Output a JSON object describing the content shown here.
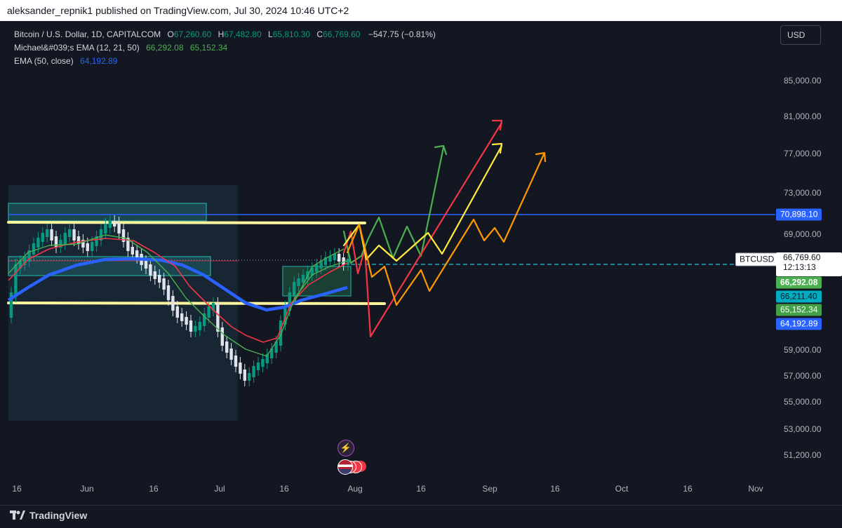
{
  "header": {
    "publisher_line": "aleksander_repnik1 published on TradingView.com, Jul 30, 2024 10:46 UTC+2"
  },
  "legend": {
    "title": "Bitcoin / U.S. Dollar, 1D, CAPITALCOM",
    "o_label": "O",
    "o": "67,260.60",
    "h_label": "H",
    "h": "67,482.80",
    "l_label": "L",
    "l": "65,810.30",
    "c_label": "C",
    "c": "66,769.60",
    "change": "−547.75 (−0.81%)",
    "ema_ribbon_label": "Michael&#039;s EMA (12, 21, 50)",
    "ema_ribbon_v1": "66,292.08",
    "ema_ribbon_v2": "65,152.34",
    "ema50_label": "EMA (50, close)",
    "ema50_value": "64,192.89"
  },
  "currency_button": "USD",
  "price_axis": {
    "ticks": [
      "85,000.00",
      "81,000.00",
      "77,000.00",
      "73,000.00",
      "69,000.00",
      "59,000.00",
      "57,000.00",
      "55,000.00",
      "53,000.00",
      "51,200.00"
    ],
    "tags": {
      "level": "70,898.10",
      "current_price": "66,769.60",
      "countdown": "12:13:13",
      "ema12": "66,292.08",
      "ema_alt": "66,211.40",
      "ema21": "65,152.34",
      "ema50": "64,192.89"
    },
    "symbol_tag": "BTCUSD"
  },
  "time_axis": {
    "ticks": [
      "16",
      "Jun",
      "16",
      "Jul",
      "16",
      "Aug",
      "16",
      "Sep",
      "16",
      "Oct",
      "16",
      "Nov"
    ]
  },
  "brand": {
    "name": "TradingView"
  },
  "colors": {
    "background": "#131722",
    "up": "#089981",
    "level_line": "#2962ff",
    "ema12": "#4caf50",
    "ema21": "#f23645",
    "ema50": "#2962ff",
    "support": "#fff59d",
    "arrow_green": "#4caf50",
    "arrow_red": "#f23645",
    "arrow_yellow": "#ffeb3b",
    "arrow_orange": "#ff9800"
  },
  "chart_data": {
    "type": "candlestick",
    "symbol": "BTCUSD",
    "interval": "1D",
    "y_range": [
      50000,
      88000
    ],
    "x_labels": [
      "16",
      "Jun",
      "16",
      "Jul",
      "16",
      "Aug",
      "16",
      "Sep",
      "16",
      "Oct",
      "16",
      "Nov"
    ],
    "last_ohlc": {
      "open": 67260.6,
      "high": 67482.8,
      "low": 65810.3,
      "close": 66769.6
    },
    "horizontal_levels": [
      70898.1
    ],
    "indicators": [
      {
        "name": "EMA 12",
        "last": 66292.08
      },
      {
        "name": "EMA 21",
        "last": 65152.34
      },
      {
        "name": "EMA 50",
        "last": 64192.89
      }
    ]
  }
}
